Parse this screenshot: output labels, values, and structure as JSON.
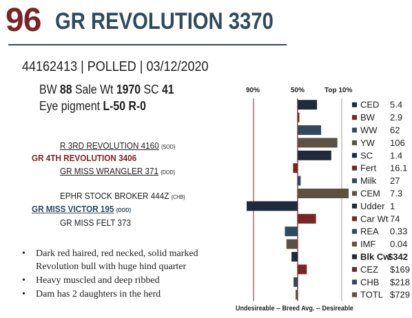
{
  "header": {
    "lot_number": "96",
    "name": "GR REVOLUTION 3370",
    "registration_line": "44162413 | POLLED | 03/12/2020"
  },
  "stats": {
    "line1": [
      {
        "label": "BW",
        "value": "88"
      },
      {
        "label": "Sale Wt",
        "value": "1970"
      },
      {
        "label": "SC",
        "value": "41"
      }
    ],
    "line2_label": "Eye pigment",
    "line2_values": [
      "L-50",
      "R-0"
    ]
  },
  "pedigree": {
    "sire_sire": {
      "name": "R 3RD REVOLUTION 4160",
      "tag": "{SOD}"
    },
    "sire": {
      "name": "GR 4TH REVOLUTION 3406"
    },
    "sire_dam": {
      "name": "GR MISS WRANGLER 371",
      "tag": "{DOD}"
    },
    "dam_sire": {
      "name": "EPHR STOCK BROKER 444Z",
      "tag": "{CHB}"
    },
    "dam": {
      "name": "GR MISS VICTOR 195",
      "tag": "{DOD}"
    },
    "dam_dam": {
      "name": "GR MISS FELT 373"
    }
  },
  "comments": [
    "Dark red haired, red necked, solid marked",
    "Revolution bull with huge hind quarter",
    "Heavy muscled and deep ribbed",
    "Dam has 2 daughters in the herd"
  ],
  "chart_data": {
    "type": "bar",
    "orientation": "horizontal",
    "percentile_labels": [
      "90%",
      "50%",
      "Top 10%"
    ],
    "axis_caption": "Undesireable -- Breed Avg. -- Desireable",
    "range": [
      -1,
      1
    ],
    "traits": [
      {
        "name": "CED",
        "value": "5.4",
        "score": 0.38,
        "color": "#1f2a3c",
        "bold": false
      },
      {
        "name": "BW",
        "value": "2.9",
        "score": 0.0,
        "color": "#7a2525",
        "bold": false
      },
      {
        "name": "WW",
        "value": "62",
        "score": 0.46,
        "color": "#2f4a5c",
        "bold": false
      },
      {
        "name": "YW",
        "value": "106",
        "score": 0.78,
        "color": "#5c5242",
        "bold": false
      },
      {
        "name": "SC",
        "value": "1.4",
        "score": 0.66,
        "color": "#1f2a3c",
        "bold": false
      },
      {
        "name": "Fert",
        "value": "16.1",
        "score": -0.09,
        "color": "#7a2525",
        "bold": false
      },
      {
        "name": "Milk",
        "value": "27",
        "score": 0.06,
        "color": "#2f4a5c",
        "bold": false
      },
      {
        "name": "CEM",
        "value": "7.3",
        "score": 1.0,
        "color": "#5c5242",
        "bold": false
      },
      {
        "name": "Udder",
        "value": "1",
        "score": -1.0,
        "color": "#1f2a3c",
        "bold": false
      },
      {
        "name": "Car Wt",
        "value": "74",
        "score": 0.36,
        "color": "#7a2525",
        "bold": false
      },
      {
        "name": "REA",
        "value": "0.33",
        "score": -0.25,
        "color": "#2f4a5c",
        "bold": false
      },
      {
        "name": "IMF",
        "value": "0.04",
        "score": -0.22,
        "color": "#5c5242",
        "bold": false
      },
      {
        "name": "Blk Cw",
        "value": "$342",
        "score": -0.12,
        "color": "#1f2a3c",
        "bold": true
      },
      {
        "name": "CEZ",
        "value": "$169",
        "score": 0.18,
        "color": "#7a2525",
        "bold": false
      },
      {
        "name": "CHB",
        "value": "$218",
        "score": -0.08,
        "color": "#2f4a5c",
        "bold": false
      },
      {
        "name": "TOTL",
        "value": "$729",
        "score": -0.04,
        "color": "#5c5242",
        "bold": false
      }
    ]
  }
}
